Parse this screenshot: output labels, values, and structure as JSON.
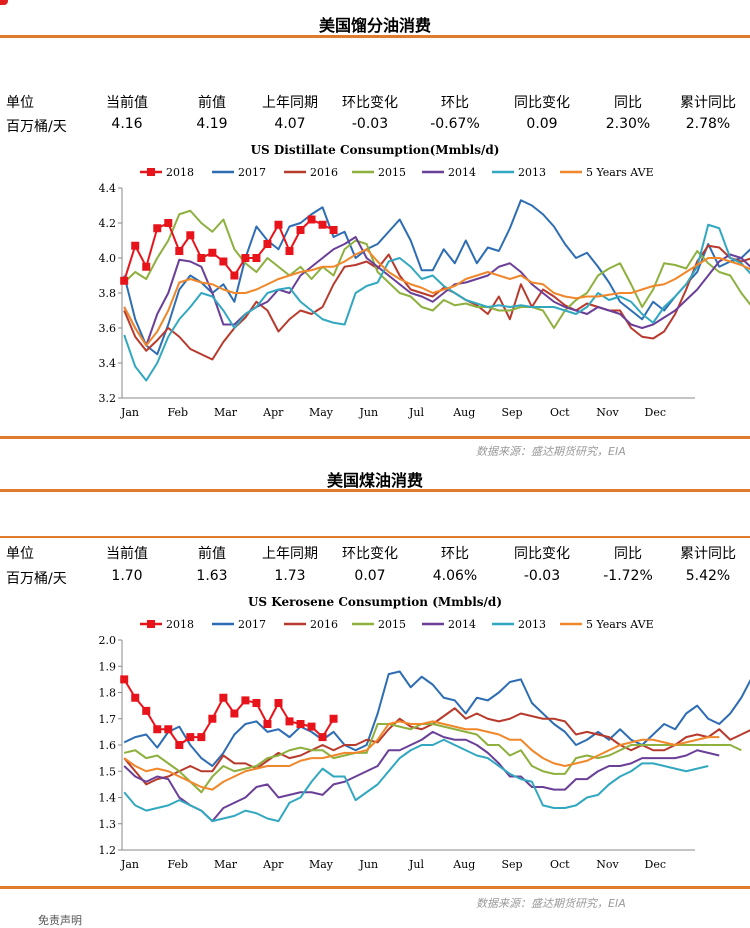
{
  "sections": [
    {
      "title": "美国馏分油消费",
      "table": {
        "headers": [
          "单位",
          "当前值",
          "前值",
          "上年同期",
          "环比变化",
          "环比",
          "同比变化",
          "同比",
          "累计同比"
        ],
        "values": [
          "百万桶/天",
          "4.16",
          "4.19",
          "4.07",
          "-0.03",
          "-0.67%",
          "0.09",
          "2.30%",
          "2.78%"
        ]
      },
      "source": "数据来源：盛达期货研究，EIA"
    },
    {
      "title": "美国煤油消费",
      "table": {
        "headers": [
          "单位",
          "当前值",
          "前值",
          "上年同期",
          "环比变化",
          "环比",
          "同比变化",
          "同比",
          "累计同比"
        ],
        "values": [
          "百万桶/天",
          "1.70",
          "1.63",
          "1.73",
          "0.07",
          "4.06%",
          "-0.03",
          "-1.72%",
          "5.42%"
        ]
      },
      "source": "数据来源：盛达期货研究，EIA"
    }
  ],
  "footer": "免责声明",
  "colors": {
    "accent_rule": "#e07b2e",
    "brand_mark": "#e02020"
  },
  "chart_data": [
    {
      "type": "line",
      "title": "US Distillate Consumption(Mmbls/d)",
      "xlabel": "",
      "ylabel": "",
      "x_ticks": [
        "Jan",
        "Feb",
        "Mar",
        "Apr",
        "May",
        "Jun",
        "Jul",
        "Aug",
        "Sep",
        "Oct",
        "Nov",
        "Dec"
      ],
      "ylim": [
        3.2,
        4.4
      ],
      "y_ticks": [
        "3.2",
        "3.4",
        "3.6",
        "3.8",
        "4.0",
        "4.2",
        "4.4"
      ],
      "legend_position": "top",
      "grid": false,
      "x_unit": "week",
      "series": [
        {
          "name": "2018",
          "color": "#e8141b",
          "marker": "square",
          "values": [
            3.87,
            4.07,
            3.95,
            4.17,
            4.2,
            4.04,
            4.13,
            4.0,
            4.03,
            3.98,
            3.9,
            4.0,
            4.0,
            4.08,
            4.19,
            4.04,
            4.16,
            4.22,
            4.19,
            4.16
          ]
        },
        {
          "name": "2017",
          "color": "#2e6db4",
          "marker": "none",
          "values": [
            3.9,
            3.65,
            3.5,
            3.45,
            3.62,
            3.82,
            3.9,
            3.86,
            3.8,
            3.85,
            3.75,
            4.0,
            4.18,
            4.1,
            4.05,
            4.18,
            4.2,
            4.25,
            4.29,
            4.12,
            4.15,
            4.0,
            4.05,
            4.08,
            4.15,
            4.22,
            4.1,
            3.93,
            3.93,
            4.05,
            3.97,
            4.1,
            3.97,
            4.06,
            4.04,
            4.17,
            4.33,
            4.3,
            4.25,
            4.18,
            4.08,
            4.0,
            4.03,
            3.95,
            3.86,
            3.75,
            3.7,
            3.65,
            3.75,
            3.7,
            3.78,
            3.85,
            3.92,
            4.08,
            3.95,
            3.98,
            4.0,
            4.06,
            4.02,
            3.95,
            3.88,
            4.0,
            3.94,
            3.98,
            4.09
          ]
        },
        {
          "name": "2016",
          "color": "#b83a2c",
          "marker": "none",
          "values": [
            3.7,
            3.55,
            3.47,
            3.53,
            3.6,
            3.55,
            3.48,
            3.45,
            3.42,
            3.52,
            3.6,
            3.66,
            3.75,
            3.7,
            3.58,
            3.65,
            3.7,
            3.68,
            3.72,
            3.85,
            3.95,
            3.96,
            3.98,
            3.94,
            4.02,
            3.9,
            3.82,
            3.8,
            3.78,
            3.83,
            3.8,
            3.76,
            3.73,
            3.68,
            3.78,
            3.65,
            3.85,
            3.72,
            3.82,
            3.78,
            3.73,
            3.7,
            3.74,
            3.72,
            3.7,
            3.7,
            3.6,
            3.55,
            3.54,
            3.58,
            3.68,
            3.82,
            3.98,
            4.07,
            4.06,
            4.0,
            3.98,
            4.0,
            4.0,
            3.95,
            3.91,
            3.9,
            3.96,
            4.04,
            4.06
          ]
        },
        {
          "name": "2015",
          "color": "#8db03e",
          "marker": "none",
          "values": [
            3.86,
            3.92,
            3.88,
            4.0,
            4.1,
            4.25,
            4.27,
            4.2,
            4.15,
            4.22,
            4.05,
            3.97,
            3.92,
            4.0,
            3.95,
            3.9,
            3.95,
            3.88,
            3.95,
            3.9,
            4.05,
            4.1,
            4.08,
            3.92,
            3.86,
            3.8,
            3.78,
            3.72,
            3.7,
            3.76,
            3.73,
            3.74,
            3.72,
            3.72,
            3.7,
            3.7,
            3.72,
            3.72,
            3.7,
            3.6,
            3.7,
            3.76,
            3.8,
            3.9,
            3.94,
            3.97,
            3.85,
            3.72,
            3.82,
            3.97,
            3.96,
            3.94,
            4.04,
            3.97,
            3.92,
            3.9,
            3.8,
            3.72,
            3.54,
            3.56,
            3.6,
            3.6
          ]
        },
        {
          "name": "2014",
          "color": "#6a3f98",
          "marker": "none",
          "values": [
            3.72,
            3.6,
            3.5,
            3.68,
            3.8,
            3.99,
            3.98,
            3.95,
            3.8,
            3.62,
            3.62,
            3.68,
            3.72,
            3.75,
            3.82,
            3.8,
            3.9,
            3.95,
            4.0,
            4.05,
            4.08,
            4.12,
            4.0,
            3.95,
            3.9,
            3.85,
            3.8,
            3.78,
            3.75,
            3.8,
            3.85,
            3.86,
            3.88,
            3.9,
            3.95,
            3.97,
            3.92,
            3.85,
            3.8,
            3.75,
            3.72,
            3.7,
            3.68,
            3.72,
            3.7,
            3.68,
            3.62,
            3.6,
            3.62,
            3.66,
            3.7,
            3.76,
            3.82,
            3.9,
            3.98,
            4.02,
            4.0,
            3.94,
            3.86,
            3.82,
            3.86,
            3.92,
            4.0,
            4.05
          ]
        },
        {
          "name": "2013",
          "color": "#32a8c0",
          "marker": "none",
          "values": [
            3.56,
            3.38,
            3.3,
            3.4,
            3.55,
            3.65,
            3.72,
            3.8,
            3.78,
            3.7,
            3.6,
            3.68,
            3.72,
            3.8,
            3.82,
            3.83,
            3.75,
            3.7,
            3.65,
            3.63,
            3.62,
            3.8,
            3.84,
            3.86,
            3.98,
            4.0,
            3.95,
            3.88,
            3.9,
            3.84,
            3.8,
            3.76,
            3.74,
            3.72,
            3.73,
            3.72,
            3.73,
            3.72,
            3.72,
            3.72,
            3.7,
            3.68,
            3.72,
            3.8,
            3.76,
            3.78,
            3.75,
            3.68,
            3.63,
            3.72,
            3.78,
            3.85,
            3.95,
            4.19,
            4.17,
            4.0,
            3.97,
            3.9,
            3.84,
            3.83,
            3.76,
            3.78,
            3.72
          ]
        },
        {
          "name": "5 Years AVE",
          "color": "#f0872a",
          "marker": "none",
          "values": [
            3.72,
            3.6,
            3.5,
            3.58,
            3.7,
            3.86,
            3.88,
            3.86,
            3.85,
            3.82,
            3.8,
            3.8,
            3.82,
            3.85,
            3.88,
            3.9,
            3.92,
            3.93,
            3.95,
            3.95,
            3.98,
            4.02,
            4.05,
            3.98,
            3.92,
            3.88,
            3.85,
            3.83,
            3.8,
            3.82,
            3.84,
            3.88,
            3.9,
            3.92,
            3.9,
            3.88,
            3.9,
            3.86,
            3.85,
            3.8,
            3.78,
            3.77,
            3.78,
            3.78,
            3.79,
            3.8,
            3.8,
            3.82,
            3.84,
            3.85,
            3.88,
            3.92,
            3.96,
            4.0,
            4.0,
            3.98,
            3.96,
            3.93,
            3.9,
            3.86,
            3.84,
            3.86,
            3.88,
            3.91
          ]
        }
      ]
    },
    {
      "type": "line",
      "title": "US Kerosene Consumption (Mmbls/d)",
      "xlabel": "",
      "ylabel": "",
      "x_ticks": [
        "Jan",
        "Feb",
        "Mar",
        "Apr",
        "May",
        "Jun",
        "Jul",
        "Aug",
        "Sep",
        "Oct",
        "Nov",
        "Dec"
      ],
      "ylim": [
        1.2,
        2.0
      ],
      "y_ticks": [
        "1.2",
        "1.3",
        "1.4",
        "1.5",
        "1.6",
        "1.7",
        "1.8",
        "1.9",
        "2.0"
      ],
      "legend_position": "top",
      "grid": false,
      "x_unit": "week",
      "series": [
        {
          "name": "2018",
          "color": "#e8141b",
          "marker": "square",
          "values": [
            1.85,
            1.78,
            1.73,
            1.66,
            1.66,
            1.6,
            1.63,
            1.63,
            1.7,
            1.78,
            1.72,
            1.77,
            1.76,
            1.68,
            1.76,
            1.69,
            1.68,
            1.67,
            1.63,
            1.7
          ]
        },
        {
          "name": "2017",
          "color": "#2e6db4",
          "marker": "none",
          "values": [
            1.61,
            1.63,
            1.64,
            1.59,
            1.65,
            1.67,
            1.6,
            1.55,
            1.52,
            1.57,
            1.64,
            1.68,
            1.69,
            1.65,
            1.66,
            1.63,
            1.67,
            1.65,
            1.62,
            1.65,
            1.6,
            1.58,
            1.6,
            1.72,
            1.87,
            1.88,
            1.82,
            1.86,
            1.83,
            1.78,
            1.77,
            1.72,
            1.78,
            1.77,
            1.8,
            1.84,
            1.85,
            1.76,
            1.72,
            1.68,
            1.65,
            1.6,
            1.62,
            1.65,
            1.62,
            1.66,
            1.62,
            1.6,
            1.64,
            1.68,
            1.66,
            1.72,
            1.75,
            1.7,
            1.68,
            1.72,
            1.78,
            1.86
          ]
        },
        {
          "name": "2016",
          "color": "#b83a2c",
          "marker": "none",
          "values": [
            1.55,
            1.5,
            1.45,
            1.47,
            1.48,
            1.5,
            1.52,
            1.5,
            1.5,
            1.56,
            1.53,
            1.53,
            1.51,
            1.54,
            1.57,
            1.55,
            1.56,
            1.58,
            1.6,
            1.58,
            1.6,
            1.6,
            1.62,
            1.61,
            1.66,
            1.7,
            1.67,
            1.66,
            1.68,
            1.71,
            1.74,
            1.7,
            1.72,
            1.7,
            1.69,
            1.7,
            1.72,
            1.71,
            1.7,
            1.7,
            1.69,
            1.64,
            1.65,
            1.64,
            1.63,
            1.6,
            1.58,
            1.6,
            1.58,
            1.58,
            1.6,
            1.63,
            1.64,
            1.63,
            1.66,
            1.62,
            1.64,
            1.66
          ]
        },
        {
          "name": "2015",
          "color": "#8db03e",
          "marker": "none",
          "values": [
            1.57,
            1.58,
            1.55,
            1.56,
            1.53,
            1.5,
            1.46,
            1.42,
            1.48,
            1.52,
            1.5,
            1.51,
            1.52,
            1.55,
            1.56,
            1.58,
            1.59,
            1.58,
            1.58,
            1.55,
            1.56,
            1.57,
            1.57,
            1.68,
            1.68,
            1.67,
            1.66,
            1.68,
            1.68,
            1.67,
            1.66,
            1.65,
            1.64,
            1.6,
            1.6,
            1.56,
            1.58,
            1.52,
            1.5,
            1.49,
            1.49,
            1.55,
            1.56,
            1.55,
            1.56,
            1.58,
            1.6,
            1.6,
            1.6,
            1.6,
            1.6,
            1.6,
            1.6,
            1.6,
            1.6,
            1.6,
            1.58
          ]
        },
        {
          "name": "2014",
          "color": "#6a3f98",
          "marker": "none",
          "values": [
            1.52,
            1.48,
            1.46,
            1.48,
            1.47,
            1.4,
            1.37,
            1.35,
            1.31,
            1.36,
            1.38,
            1.4,
            1.44,
            1.45,
            1.4,
            1.41,
            1.42,
            1.42,
            1.41,
            1.45,
            1.46,
            1.48,
            1.5,
            1.52,
            1.58,
            1.58,
            1.6,
            1.62,
            1.65,
            1.63,
            1.62,
            1.62,
            1.6,
            1.57,
            1.53,
            1.48,
            1.48,
            1.44,
            1.44,
            1.43,
            1.43,
            1.47,
            1.47,
            1.5,
            1.52,
            1.52,
            1.53,
            1.55,
            1.55,
            1.55,
            1.55,
            1.56,
            1.58,
            1.57,
            1.56
          ]
        },
        {
          "name": "2013",
          "color": "#32a8c0",
          "marker": "none",
          "values": [
            1.42,
            1.37,
            1.35,
            1.36,
            1.37,
            1.39,
            1.37,
            1.35,
            1.31,
            1.32,
            1.33,
            1.35,
            1.34,
            1.32,
            1.31,
            1.38,
            1.4,
            1.46,
            1.51,
            1.48,
            1.48,
            1.39,
            1.42,
            1.45,
            1.5,
            1.55,
            1.58,
            1.6,
            1.6,
            1.62,
            1.6,
            1.58,
            1.56,
            1.55,
            1.52,
            1.49,
            1.47,
            1.46,
            1.37,
            1.36,
            1.36,
            1.37,
            1.4,
            1.41,
            1.45,
            1.48,
            1.5,
            1.53,
            1.53,
            1.52,
            1.51,
            1.5,
            1.51,
            1.52
          ]
        },
        {
          "name": "5 Years AVE",
          "color": "#f0872a",
          "marker": "none",
          "values": [
            1.55,
            1.52,
            1.5,
            1.51,
            1.5,
            1.48,
            1.46,
            1.44,
            1.43,
            1.46,
            1.48,
            1.5,
            1.51,
            1.52,
            1.52,
            1.52,
            1.54,
            1.55,
            1.55,
            1.56,
            1.57,
            1.57,
            1.58,
            1.62,
            1.68,
            1.69,
            1.68,
            1.68,
            1.69,
            1.68,
            1.67,
            1.66,
            1.66,
            1.65,
            1.64,
            1.62,
            1.62,
            1.58,
            1.55,
            1.53,
            1.52,
            1.53,
            1.54,
            1.56,
            1.58,
            1.6,
            1.61,
            1.62,
            1.62,
            1.61,
            1.6,
            1.61,
            1.62,
            1.63,
            1.63
          ]
        }
      ]
    }
  ]
}
